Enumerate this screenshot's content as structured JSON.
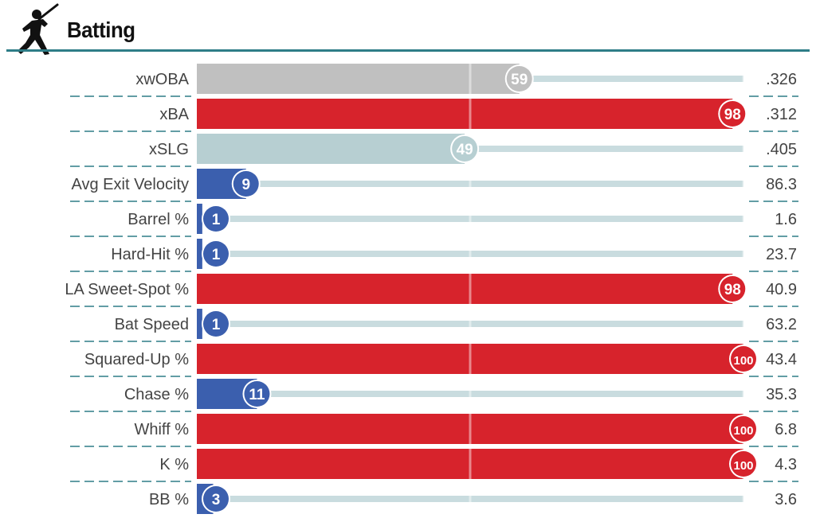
{
  "section_title": "Batting",
  "chart_data": {
    "type": "bar",
    "title": "Batting",
    "xlim": [
      0,
      100
    ],
    "categories": [
      "xwOBA",
      "xBA",
      "xSLG",
      "Avg Exit Velocity",
      "Barrel %",
      "Hard-Hit %",
      "LA Sweet-Spot %",
      "Bat Speed",
      "Squared-Up %",
      "Chase %",
      "Whiff %",
      "K %",
      "BB %"
    ],
    "percentiles": [
      59,
      98,
      49,
      9,
      1,
      1,
      98,
      1,
      100,
      11,
      100,
      100,
      3
    ],
    "values": [
      ".326",
      ".312",
      ".405",
      "86.3",
      "1.6",
      "23.7",
      "40.9",
      "63.2",
      "43.4",
      "35.3",
      "6.8",
      "4.3",
      "3.6"
    ],
    "bar_colors": [
      "#c0c0c0",
      "#d7232c",
      "#b7cfd2",
      "#3b5fae",
      "#3b5fae",
      "#3b5fae",
      "#d7232c",
      "#3b5fae",
      "#d7232c",
      "#3b5fae",
      "#d7232c",
      "#d7232c",
      "#3b5fae"
    ],
    "track_color": "#c9dcdf",
    "separator_color": "#2e7d87"
  }
}
